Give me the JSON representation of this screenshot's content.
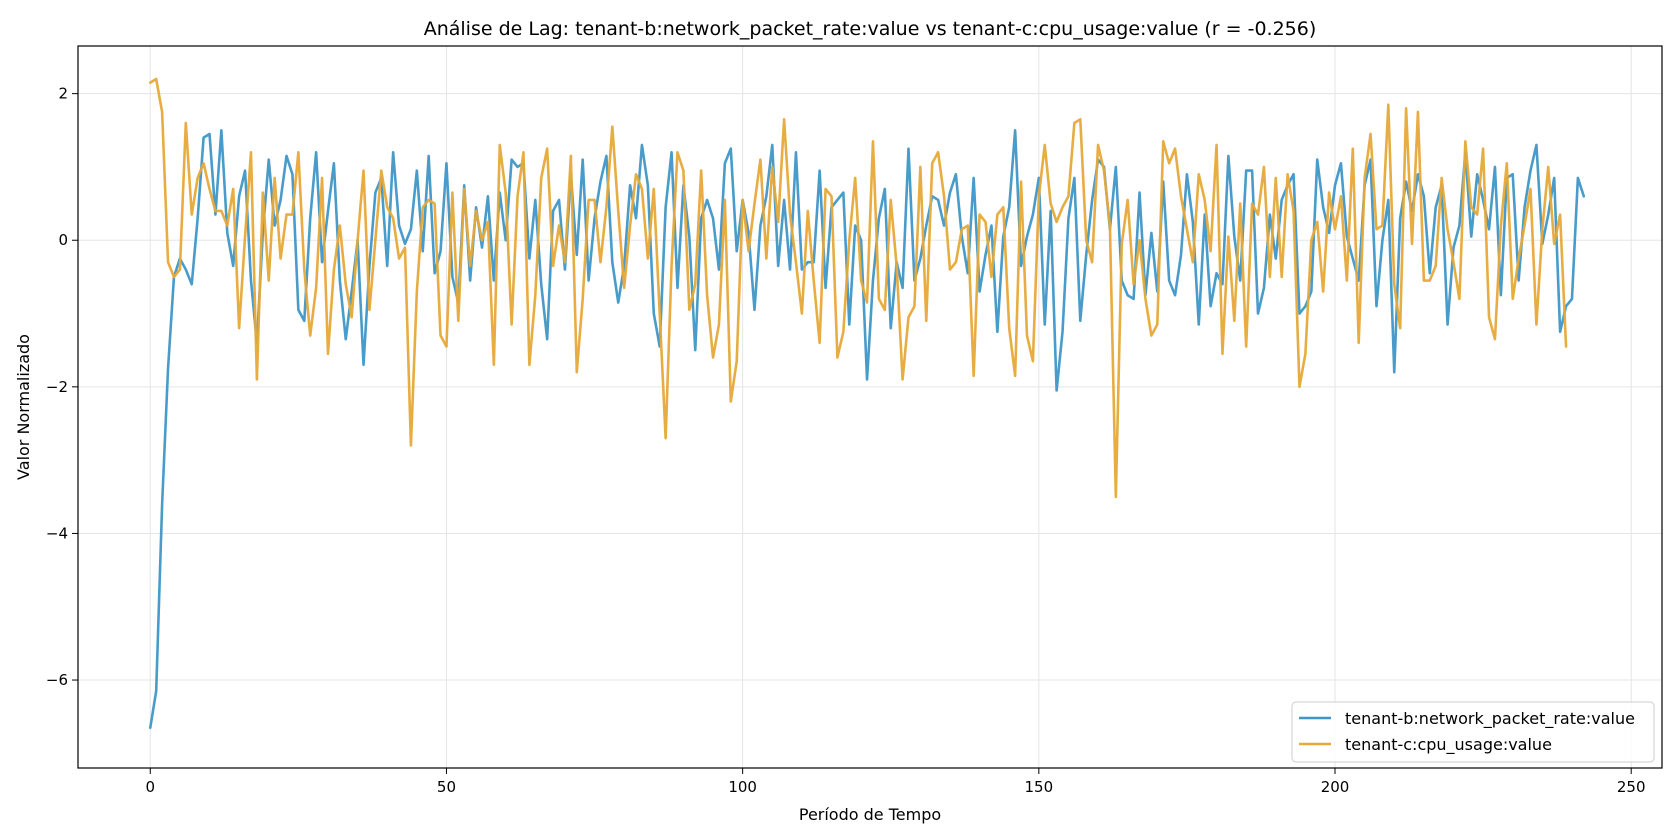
{
  "chart_data": {
    "type": "line",
    "title": "Análise de Lag: tenant-b:network_packet_rate:value vs tenant-c:cpu_usage:value (r = -0.256)",
    "xlabel": "Período de Tempo",
    "ylabel": "Valor Normalizado",
    "xlim": [
      -12.2,
      255.2
    ],
    "ylim": [
      -7.2,
      2.65
    ],
    "xticks": [
      0,
      50,
      100,
      150,
      200,
      250
    ],
    "yticks": [
      -6,
      -4,
      -2,
      0,
      2
    ],
    "xtick_labels": [
      "0",
      "50",
      "100",
      "150",
      "200",
      "250"
    ],
    "ytick_labels": [
      "−6",
      "−4",
      "−2",
      "0",
      "2"
    ],
    "grid": true,
    "legend_position": "bottom-right",
    "series": [
      {
        "name": "tenant-b:network_packet_rate:value",
        "color": "#3f97c7",
        "values": [
          -6.65,
          -6.15,
          -3.6,
          -1.75,
          -0.5,
          -0.25,
          -0.4,
          -0.6,
          0.3,
          1.4,
          1.45,
          0.35,
          1.5,
          0.1,
          -0.35,
          0.6,
          0.95,
          -0.55,
          -1.4,
          0.1,
          1.1,
          0.2,
          0.55,
          1.15,
          0.9,
          -0.95,
          -1.1,
          0.3,
          1.2,
          -0.3,
          0.4,
          1.05,
          -0.55,
          -1.35,
          -0.7,
          0.0,
          -1.7,
          -0.35,
          0.65,
          0.85,
          -0.35,
          1.2,
          0.2,
          -0.05,
          0.15,
          0.95,
          -0.15,
          1.15,
          -0.45,
          -0.15,
          1.05,
          -0.5,
          -0.85,
          0.75,
          -0.55,
          0.45,
          -0.1,
          0.6,
          -0.55,
          0.65,
          0.0,
          1.1,
          1.0,
          1.05,
          -0.25,
          0.55,
          -0.6,
          -1.35,
          0.4,
          0.55,
          -0.4,
          0.9,
          -0.2,
          1.1,
          -0.55,
          0.3,
          0.8,
          1.15,
          -0.3,
          -0.85,
          -0.35,
          0.75,
          0.3,
          1.3,
          0.75,
          -1.0,
          -1.45,
          0.45,
          1.2,
          -0.65,
          0.75,
          0.05,
          -1.5,
          0.3,
          0.55,
          0.3,
          -0.4,
          1.05,
          1.25,
          -0.15,
          0.55,
          0.1,
          -0.95,
          0.2,
          0.6,
          1.3,
          -0.35,
          0.55,
          -0.4,
          1.2,
          -0.4,
          -0.3,
          -0.3,
          0.95,
          -0.65,
          0.45,
          0.55,
          0.65,
          -1.15,
          0.2,
          0.0,
          -1.9,
          -0.55,
          0.3,
          0.7,
          -1.2,
          -0.3,
          -0.65,
          1.25,
          -0.55,
          -0.25,
          0.2,
          0.6,
          0.55,
          0.2,
          0.65,
          0.9,
          0.05,
          -0.45,
          0.85,
          -0.7,
          -0.2,
          0.2,
          -1.25,
          0.05,
          0.45,
          1.5,
          -0.35,
          0.05,
          0.35,
          0.85,
          -1.15,
          0.4,
          -2.05,
          -1.25,
          0.3,
          0.85,
          -1.1,
          -0.2,
          0.55,
          1.1,
          1.0,
          0.15,
          1.0,
          -0.55,
          -0.75,
          -0.8,
          0.65,
          -0.75,
          0.1,
          -0.7,
          0.8,
          -0.55,
          -0.75,
          -0.2,
          0.9,
          0.25,
          -1.15,
          0.35,
          -0.9,
          -0.45,
          -0.6,
          1.15,
          0.05,
          -0.55,
          0.95,
          0.95,
          -1.0,
          -0.65,
          0.35,
          -0.25,
          0.55,
          0.75,
          0.9,
          -1.0,
          -0.9,
          -0.7,
          1.1,
          0.45,
          0.1,
          0.75,
          1.05,
          0.05,
          -0.25,
          -0.55,
          0.75,
          1.1,
          -0.9,
          0.0,
          0.55,
          -1.8,
          0.3,
          0.8,
          0.4,
          0.9,
          0.6,
          -0.45,
          0.45,
          0.75,
          -1.15,
          -0.1,
          0.2,
          1.2,
          0.05,
          0.9,
          0.55,
          0.15,
          1.0,
          -0.75,
          0.85,
          0.9,
          -0.55,
          0.45,
          0.95,
          1.3,
          -0.05,
          0.35,
          0.85,
          -1.25,
          -0.9,
          -0.8,
          0.85,
          0.6
        ]
      },
      {
        "name": "tenant-c:cpu_usage:value",
        "color": "#e7a938",
        "values": [
          2.15,
          2.2,
          1.75,
          -0.3,
          -0.5,
          -0.4,
          1.6,
          0.35,
          0.85,
          1.05,
          0.7,
          0.4,
          0.4,
          0.2,
          0.7,
          -1.2,
          0.05,
          1.2,
          -1.9,
          0.65,
          -0.55,
          0.85,
          -0.25,
          0.35,
          0.35,
          1.2,
          -0.4,
          -1.3,
          -0.65,
          0.85,
          -1.55,
          -0.4,
          0.2,
          -0.6,
          -1.05,
          0.0,
          0.95,
          -0.95,
          0.0,
          0.95,
          0.45,
          0.3,
          -0.25,
          -0.1,
          -2.8,
          -0.7,
          0.45,
          0.55,
          0.5,
          -1.3,
          -1.45,
          0.65,
          -1.1,
          0.7,
          -0.35,
          0.4,
          0.0,
          0.25,
          -1.7,
          1.3,
          0.65,
          -1.15,
          0.6,
          1.2,
          -1.7,
          -0.75,
          0.85,
          1.25,
          -0.35,
          0.2,
          -0.3,
          1.15,
          -1.8,
          -0.8,
          0.55,
          0.55,
          -0.3,
          0.45,
          1.55,
          0.4,
          -0.65,
          0.2,
          0.9,
          0.7,
          -0.25,
          0.7,
          -1.0,
          -2.7,
          -0.35,
          1.2,
          0.95,
          -0.95,
          -0.6,
          0.95,
          -0.75,
          -1.6,
          -1.15,
          0.55,
          -2.2,
          -1.65,
          0.55,
          -0.15,
          0.5,
          1.1,
          -0.25,
          1.0,
          0.25,
          1.65,
          0.35,
          -0.3,
          -1.0,
          0.4,
          -0.55,
          -1.4,
          0.7,
          0.6,
          -1.6,
          -1.25,
          0.0,
          0.85,
          -0.55,
          -0.85,
          1.35,
          -0.8,
          -0.95,
          0.55,
          -0.35,
          -1.9,
          -1.05,
          -0.9,
          1.0,
          -1.1,
          1.05,
          1.2,
          0.6,
          -0.4,
          -0.3,
          0.15,
          0.2,
          -1.85,
          0.35,
          0.25,
          -0.5,
          0.35,
          0.45,
          -1.2,
          -1.85,
          0.8,
          -1.3,
          -1.65,
          0.6,
          1.3,
          0.5,
          0.25,
          0.45,
          0.6,
          1.6,
          1.65,
          0.0,
          -0.3,
          1.3,
          0.95,
          0.2,
          -3.5,
          -0.05,
          0.55,
          -0.6,
          0.0,
          -0.8,
          -1.3,
          -1.15,
          1.35,
          1.05,
          1.25,
          0.6,
          0.15,
          -0.3,
          0.9,
          0.55,
          -0.15,
          1.3,
          -1.55,
          0.05,
          -1.1,
          0.5,
          -1.45,
          0.5,
          0.35,
          1.0,
          -0.5,
          0.85,
          -0.5,
          0.9,
          0.4,
          -2.0,
          -1.55,
          0.0,
          0.25,
          -0.7,
          0.65,
          0.15,
          0.6,
          -0.55,
          1.25,
          -1.4,
          0.85,
          1.45,
          0.15,
          0.2,
          1.85,
          -0.6,
          -1.2,
          1.8,
          -0.05,
          1.75,
          -0.55,
          -0.55,
          -0.35,
          0.85,
          0.15,
          -0.3,
          -0.8,
          1.35,
          0.45,
          0.35,
          1.25,
          -1.05,
          -1.35,
          0.2,
          1.05,
          -0.8,
          -0.25,
          0.2,
          0.7,
          -1.15,
          0.15,
          1.0,
          -0.05,
          0.35,
          -1.45
        ]
      }
    ]
  }
}
